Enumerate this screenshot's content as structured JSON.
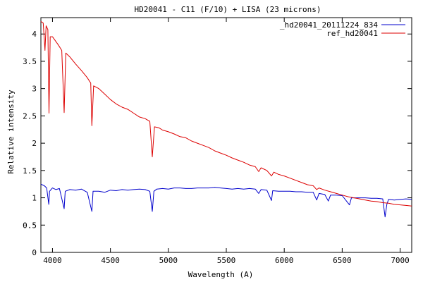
{
  "chart_data": {
    "type": "line",
    "title": "HD20041 - C11 (F/10) + LISA (23 microns)",
    "xlabel": "Wavelength (A)",
    "ylabel": "Relative intensity",
    "xlim": [
      3900,
      7100
    ],
    "ylim": [
      0,
      4.3
    ],
    "xticks": [
      {
        "value": 4000,
        "label": "4000"
      },
      {
        "value": 4500,
        "label": "4500"
      },
      {
        "value": 5000,
        "label": "5000"
      },
      {
        "value": 5500,
        "label": "5500"
      },
      {
        "value": 6000,
        "label": "6000"
      },
      {
        "value": 6500,
        "label": "6500"
      },
      {
        "value": 7000,
        "label": "7000"
      }
    ],
    "yticks": [
      {
        "value": 0,
        "label": "0"
      },
      {
        "value": 0.5,
        "label": "0.5"
      },
      {
        "value": 1,
        "label": "1"
      },
      {
        "value": 1.5,
        "label": "1.5"
      },
      {
        "value": 2,
        "label": "2"
      },
      {
        "value": 2.5,
        "label": "2.5"
      },
      {
        "value": 3,
        "label": "3"
      },
      {
        "value": 3.5,
        "label": "3.5"
      },
      {
        "value": 4,
        "label": "4"
      }
    ],
    "grid": false,
    "legend_position": "top-right",
    "series": [
      {
        "name": "_hd20041_20111224_834",
        "color": "#0000cc",
        "points": [
          [
            3900,
            1.25
          ],
          [
            3930,
            1.22
          ],
          [
            3950,
            1.18
          ],
          [
            3968,
            0.88
          ],
          [
            3975,
            1.12
          ],
          [
            4000,
            1.18
          ],
          [
            4030,
            1.15
          ],
          [
            4060,
            1.17
          ],
          [
            4101,
            0.8
          ],
          [
            4110,
            1.12
          ],
          [
            4150,
            1.15
          ],
          [
            4200,
            1.14
          ],
          [
            4250,
            1.16
          ],
          [
            4300,
            1.1
          ],
          [
            4340,
            0.75
          ],
          [
            4350,
            1.12
          ],
          [
            4400,
            1.12
          ],
          [
            4450,
            1.1
          ],
          [
            4500,
            1.14
          ],
          [
            4550,
            1.13
          ],
          [
            4600,
            1.15
          ],
          [
            4650,
            1.14
          ],
          [
            4700,
            1.15
          ],
          [
            4750,
            1.16
          ],
          [
            4800,
            1.15
          ],
          [
            4840,
            1.12
          ],
          [
            4861,
            0.75
          ],
          [
            4875,
            1.12
          ],
          [
            4900,
            1.16
          ],
          [
            4950,
            1.17
          ],
          [
            5000,
            1.16
          ],
          [
            5050,
            1.18
          ],
          [
            5100,
            1.18
          ],
          [
            5150,
            1.17
          ],
          [
            5200,
            1.17
          ],
          [
            5250,
            1.18
          ],
          [
            5300,
            1.18
          ],
          [
            5350,
            1.18
          ],
          [
            5400,
            1.19
          ],
          [
            5450,
            1.18
          ],
          [
            5500,
            1.17
          ],
          [
            5550,
            1.16
          ],
          [
            5600,
            1.17
          ],
          [
            5650,
            1.16
          ],
          [
            5700,
            1.17
          ],
          [
            5750,
            1.16
          ],
          [
            5780,
            1.08
          ],
          [
            5800,
            1.15
          ],
          [
            5850,
            1.14
          ],
          [
            5890,
            0.95
          ],
          [
            5900,
            1.13
          ],
          [
            5950,
            1.12
          ],
          [
            6000,
            1.12
          ],
          [
            6050,
            1.12
          ],
          [
            6100,
            1.11
          ],
          [
            6150,
            1.11
          ],
          [
            6200,
            1.1
          ],
          [
            6250,
            1.1
          ],
          [
            6280,
            0.96
          ],
          [
            6300,
            1.08
          ],
          [
            6350,
            1.06
          ],
          [
            6380,
            0.94
          ],
          [
            6400,
            1.05
          ],
          [
            6450,
            1.05
          ],
          [
            6500,
            1.04
          ],
          [
            6563,
            0.87
          ],
          [
            6580,
            1.0
          ],
          [
            6650,
            1.0
          ],
          [
            6700,
            1.0
          ],
          [
            6750,
            0.99
          ],
          [
            6800,
            0.99
          ],
          [
            6850,
            0.98
          ],
          [
            6870,
            0.65
          ],
          [
            6885,
            0.88
          ],
          [
            6900,
            0.97
          ],
          [
            6950,
            0.96
          ],
          [
            7000,
            0.97
          ],
          [
            7050,
            0.98
          ],
          [
            7100,
            0.97
          ]
        ]
      },
      {
        "name": "ref_hd20041",
        "color": "#dd0000",
        "points": [
          [
            3900,
            4.23
          ],
          [
            3920,
            4.2
          ],
          [
            3935,
            3.7
          ],
          [
            3945,
            4.15
          ],
          [
            3960,
            4.08
          ],
          [
            3970,
            2.55
          ],
          [
            3980,
            3.95
          ],
          [
            4000,
            3.95
          ],
          [
            4050,
            3.8
          ],
          [
            4080,
            3.7
          ],
          [
            4101,
            2.56
          ],
          [
            4115,
            3.65
          ],
          [
            4150,
            3.58
          ],
          [
            4200,
            3.45
          ],
          [
            4250,
            3.33
          ],
          [
            4300,
            3.2
          ],
          [
            4330,
            3.1
          ],
          [
            4340,
            2.32
          ],
          [
            4355,
            3.05
          ],
          [
            4400,
            3.0
          ],
          [
            4450,
            2.9
          ],
          [
            4500,
            2.8
          ],
          [
            4550,
            2.72
          ],
          [
            4600,
            2.66
          ],
          [
            4650,
            2.62
          ],
          [
            4700,
            2.55
          ],
          [
            4750,
            2.48
          ],
          [
            4800,
            2.45
          ],
          [
            4840,
            2.4
          ],
          [
            4861,
            1.75
          ],
          [
            4880,
            2.3
          ],
          [
            4920,
            2.28
          ],
          [
            4950,
            2.24
          ],
          [
            5000,
            2.21
          ],
          [
            5050,
            2.17
          ],
          [
            5100,
            2.12
          ],
          [
            5150,
            2.1
          ],
          [
            5200,
            2.04
          ],
          [
            5250,
            2.0
          ],
          [
            5300,
            1.96
          ],
          [
            5350,
            1.92
          ],
          [
            5400,
            1.86
          ],
          [
            5450,
            1.82
          ],
          [
            5500,
            1.78
          ],
          [
            5550,
            1.73
          ],
          [
            5600,
            1.69
          ],
          [
            5650,
            1.65
          ],
          [
            5700,
            1.6
          ],
          [
            5750,
            1.57
          ],
          [
            5780,
            1.48
          ],
          [
            5800,
            1.55
          ],
          [
            5850,
            1.5
          ],
          [
            5890,
            1.4
          ],
          [
            5910,
            1.47
          ],
          [
            5950,
            1.43
          ],
          [
            6000,
            1.4
          ],
          [
            6050,
            1.36
          ],
          [
            6100,
            1.32
          ],
          [
            6150,
            1.28
          ],
          [
            6200,
            1.24
          ],
          [
            6250,
            1.22
          ],
          [
            6280,
            1.15
          ],
          [
            6300,
            1.18
          ],
          [
            6350,
            1.14
          ],
          [
            6400,
            1.11
          ],
          [
            6450,
            1.08
          ],
          [
            6500,
            1.05
          ],
          [
            6550,
            1.02
          ],
          [
            6600,
            1.0
          ],
          [
            6650,
            0.98
          ],
          [
            6700,
            0.96
          ],
          [
            6750,
            0.94
          ],
          [
            6800,
            0.93
          ],
          [
            6850,
            0.91
          ],
          [
            6900,
            0.9
          ],
          [
            6950,
            0.88
          ],
          [
            7000,
            0.87
          ],
          [
            7050,
            0.86
          ],
          [
            7100,
            0.85
          ]
        ]
      }
    ]
  }
}
